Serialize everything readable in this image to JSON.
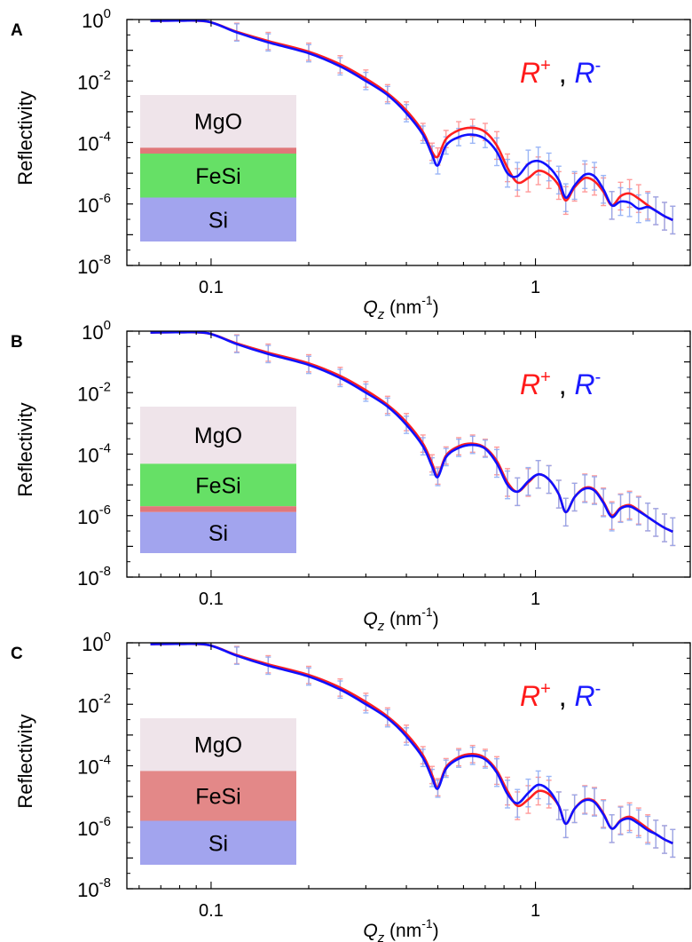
{
  "chart_data": [
    {
      "panel": "A",
      "type": "line",
      "xlabel_main": "Q",
      "xlabel_sub": "z",
      "xlabel_unit": "(nm",
      "xlabel_exp": "-1",
      "xlabel_close": ")",
      "ylabel": "Reflectivity",
      "xscale": "log",
      "yscale": "log",
      "xlim": [
        0.055,
        3.0
      ],
      "ylim": [
        1e-08,
        1
      ],
      "x_ticks": [
        {
          "value": 0.1,
          "label": "0.1"
        },
        {
          "value": 1,
          "label": "1"
        }
      ],
      "y_ticks": [
        {
          "value": 1,
          "base": "10",
          "exp": "0"
        },
        {
          "value": 0.01,
          "base": "10",
          "exp": "-2"
        },
        {
          "value": 0.0001,
          "base": "10",
          "exp": "-4"
        },
        {
          "value": 1e-06,
          "base": "10",
          "exp": "-6"
        },
        {
          "value": 1e-08,
          "base": "10",
          "exp": "-8"
        }
      ],
      "legend": {
        "plus_label": "R",
        "plus_sup": "+",
        "sep": ",",
        "minus_label": "R",
        "minus_sup": "-"
      },
      "layers": [
        {
          "label": "MgO",
          "color": "#efe4ea",
          "frac": 0.36
        },
        {
          "label": "",
          "color": "#e0777a",
          "frac": 0.04
        },
        {
          "label": "FeSi",
          "color": "#66e066",
          "frac": 0.3
        },
        {
          "label": "Si",
          "color": "#a2a4ee",
          "frac": 0.3
        }
      ],
      "series": [
        {
          "name": "R+",
          "color": "#ff2020",
          "errcolor": "#ff8a8a",
          "x": [
            0.065,
            0.08,
            0.098,
            0.12,
            0.15,
            0.2,
            0.25,
            0.3,
            0.35,
            0.4,
            0.45,
            0.48,
            0.5,
            0.53,
            0.58,
            0.64,
            0.7,
            0.76,
            0.82,
            0.88,
            0.95,
            1.02,
            1.1,
            1.18,
            1.24,
            1.32,
            1.42,
            1.52,
            1.62,
            1.72,
            1.83,
            1.95,
            2.08,
            2.22,
            2.35,
            2.5,
            2.65
          ],
          "y": [
            0.9,
            0.92,
            0.85,
            0.4,
            0.2,
            0.09,
            0.035,
            0.012,
            0.004,
            0.0011,
            0.00022,
            5e-05,
            3.5e-05,
            0.00013,
            0.00025,
            0.0003,
            0.00022,
            8e-05,
            1.5e-05,
            5e-06,
            7e-06,
            1.2e-05,
            9e-06,
            4e-06,
            1.3e-06,
            3.5e-06,
            7e-06,
            5.5e-06,
            2.5e-06,
            9e-07,
            1.8e-06,
            2.2e-06,
            1.5e-06,
            9e-07,
            6e-07,
            4e-07,
            3e-07
          ]
        },
        {
          "name": "R-",
          "color": "#1010ff",
          "errcolor": "#8aaaf5",
          "x": [
            0.065,
            0.08,
            0.098,
            0.12,
            0.15,
            0.2,
            0.25,
            0.3,
            0.35,
            0.4,
            0.45,
            0.48,
            0.5,
            0.53,
            0.58,
            0.64,
            0.7,
            0.76,
            0.82,
            0.88,
            0.95,
            1.02,
            1.1,
            1.18,
            1.24,
            1.32,
            1.42,
            1.52,
            1.62,
            1.72,
            1.83,
            1.95,
            2.08,
            2.22,
            2.35,
            2.5,
            2.65
          ],
          "y": [
            0.9,
            0.92,
            0.85,
            0.38,
            0.18,
            0.08,
            0.03,
            0.01,
            0.0035,
            0.0009,
            0.00018,
            4e-05,
            1.8e-05,
            8e-05,
            0.00015,
            0.00018,
            0.00013,
            5e-05,
            1e-05,
            8e-06,
            2e-05,
            2.5e-05,
            1.6e-05,
            6e-06,
            1.6e-06,
            4e-06,
            9e-06,
            8e-06,
            3e-06,
            9e-07,
            1.2e-06,
            1.1e-06,
            7e-07,
            8e-07,
            6e-07,
            4e-07,
            3e-07
          ]
        }
      ]
    },
    {
      "panel": "B",
      "type": "line",
      "xlabel_main": "Q",
      "xlabel_sub": "z",
      "xlabel_unit": "(nm",
      "xlabel_exp": "-1",
      "xlabel_close": ")",
      "ylabel": "Reflectivity",
      "xscale": "log",
      "yscale": "log",
      "xlim": [
        0.055,
        3.0
      ],
      "ylim": [
        1e-08,
        1
      ],
      "x_ticks": [
        {
          "value": 0.1,
          "label": "0.1"
        },
        {
          "value": 1,
          "label": "1"
        }
      ],
      "y_ticks": [
        {
          "value": 1,
          "base": "10",
          "exp": "0"
        },
        {
          "value": 0.01,
          "base": "10",
          "exp": "-2"
        },
        {
          "value": 0.0001,
          "base": "10",
          "exp": "-4"
        },
        {
          "value": 1e-06,
          "base": "10",
          "exp": "-6"
        },
        {
          "value": 1e-08,
          "base": "10",
          "exp": "-8"
        }
      ],
      "legend": {
        "plus_label": "R",
        "plus_sup": "+",
        "sep": ",",
        "minus_label": "R",
        "minus_sup": "-"
      },
      "layers": [
        {
          "label": "MgO",
          "color": "#efe4ea",
          "frac": 0.39
        },
        {
          "label": "FeSi",
          "color": "#66e066",
          "frac": 0.29
        },
        {
          "label": "",
          "color": "#e0777a",
          "frac": 0.04
        },
        {
          "label": "Si",
          "color": "#a2a4ee",
          "frac": 0.28
        }
      ],
      "series": [
        {
          "name": "R+",
          "color": "#ff2020",
          "errcolor": "#ff8a8a",
          "x": [
            0.065,
            0.08,
            0.098,
            0.12,
            0.15,
            0.2,
            0.25,
            0.3,
            0.35,
            0.4,
            0.45,
            0.48,
            0.5,
            0.53,
            0.58,
            0.64,
            0.7,
            0.76,
            0.82,
            0.88,
            0.95,
            1.02,
            1.1,
            1.18,
            1.24,
            1.32,
            1.42,
            1.52,
            1.62,
            1.72,
            1.83,
            1.95,
            2.08,
            2.22,
            2.35,
            2.5,
            2.65
          ],
          "y": [
            0.9,
            0.92,
            0.85,
            0.4,
            0.2,
            0.09,
            0.035,
            0.012,
            0.004,
            0.0011,
            0.00022,
            5e-05,
            2e-05,
            9e-05,
            0.00018,
            0.00022,
            0.00016,
            6e-05,
            1.2e-05,
            6e-06,
            1.2e-05,
            2.2e-05,
            1.5e-05,
            5e-06,
            1.3e-06,
            4e-06,
            8e-06,
            7e-06,
            2.8e-06,
            1e-06,
            1.8e-06,
            2.2e-06,
            1.5e-06,
            9e-07,
            6e-07,
            4e-07,
            3e-07
          ]
        },
        {
          "name": "R-",
          "color": "#1010ff",
          "errcolor": "#8aaaf5",
          "x": [
            0.065,
            0.08,
            0.098,
            0.12,
            0.15,
            0.2,
            0.25,
            0.3,
            0.35,
            0.4,
            0.45,
            0.48,
            0.5,
            0.53,
            0.58,
            0.64,
            0.7,
            0.76,
            0.82,
            0.88,
            0.95,
            1.02,
            1.1,
            1.18,
            1.24,
            1.32,
            1.42,
            1.52,
            1.62,
            1.72,
            1.83,
            1.95,
            2.08,
            2.22,
            2.35,
            2.5,
            2.65
          ],
          "y": [
            0.9,
            0.92,
            0.85,
            0.38,
            0.18,
            0.08,
            0.03,
            0.01,
            0.0035,
            0.0009,
            0.00018,
            4e-05,
            1.8e-05,
            8e-05,
            0.00016,
            0.0002,
            0.00015,
            5e-05,
            1e-05,
            6e-06,
            1.3e-05,
            2.2e-05,
            1.5e-05,
            5e-06,
            1.3e-06,
            4e-06,
            7.5e-06,
            6.5e-06,
            2.6e-06,
            9e-07,
            1.7e-06,
            2e-06,
            1.4e-06,
            9e-07,
            6e-07,
            4e-07,
            3e-07
          ]
        }
      ]
    },
    {
      "panel": "C",
      "type": "line",
      "xlabel_main": "Q",
      "xlabel_sub": "z",
      "xlabel_unit": "(nm",
      "xlabel_exp": "-1",
      "xlabel_close": ")",
      "ylabel": "Reflectivity",
      "xscale": "log",
      "yscale": "log",
      "xlim": [
        0.055,
        3.0
      ],
      "ylim": [
        1e-08,
        1
      ],
      "x_ticks": [
        {
          "value": 0.1,
          "label": "0.1"
        },
        {
          "value": 1,
          "label": "1"
        }
      ],
      "y_ticks": [
        {
          "value": 1,
          "base": "10",
          "exp": "0"
        },
        {
          "value": 0.01,
          "base": "10",
          "exp": "-2"
        },
        {
          "value": 0.0001,
          "base": "10",
          "exp": "-4"
        },
        {
          "value": 1e-06,
          "base": "10",
          "exp": "-6"
        },
        {
          "value": 1e-08,
          "base": "10",
          "exp": "-8"
        }
      ],
      "legend": {
        "plus_label": "R",
        "plus_sup": "+",
        "sep": ",",
        "minus_label": "R",
        "minus_sup": "-"
      },
      "layers": [
        {
          "label": "MgO",
          "color": "#efe4ea",
          "frac": 0.36
        },
        {
          "label": "FeSi",
          "color": "#e38888",
          "frac": 0.34
        },
        {
          "label": "Si",
          "color": "#a2a4ee",
          "frac": 0.3
        }
      ],
      "series": [
        {
          "name": "R+",
          "color": "#ff2020",
          "errcolor": "#ff8a8a",
          "x": [
            0.065,
            0.08,
            0.098,
            0.12,
            0.15,
            0.2,
            0.25,
            0.3,
            0.35,
            0.4,
            0.45,
            0.48,
            0.5,
            0.53,
            0.58,
            0.64,
            0.7,
            0.76,
            0.82,
            0.88,
            0.95,
            1.02,
            1.1,
            1.18,
            1.24,
            1.32,
            1.42,
            1.52,
            1.62,
            1.72,
            1.83,
            1.95,
            2.08,
            2.22,
            2.35,
            2.5,
            2.65
          ],
          "y": [
            0.9,
            0.92,
            0.85,
            0.4,
            0.2,
            0.09,
            0.035,
            0.012,
            0.004,
            0.0011,
            0.00022,
            5e-05,
            2e-05,
            9e-05,
            0.00019,
            0.00024,
            0.00018,
            7e-05,
            1.5e-05,
            5e-06,
            8e-06,
            1.5e-05,
            1.2e-05,
            5e-06,
            1.3e-06,
            4e-06,
            8e-06,
            7e-06,
            2.8e-06,
            9e-07,
            1.7e-06,
            2.2e-06,
            1.5e-06,
            9e-07,
            6e-07,
            4e-07,
            3e-07
          ]
        },
        {
          "name": "R-",
          "color": "#1010ff",
          "errcolor": "#8aaaf5",
          "x": [
            0.065,
            0.08,
            0.098,
            0.12,
            0.15,
            0.2,
            0.25,
            0.3,
            0.35,
            0.4,
            0.45,
            0.48,
            0.5,
            0.53,
            0.58,
            0.64,
            0.7,
            0.76,
            0.82,
            0.88,
            0.95,
            1.02,
            1.1,
            1.18,
            1.24,
            1.32,
            1.42,
            1.52,
            1.62,
            1.72,
            1.83,
            1.95,
            2.08,
            2.22,
            2.35,
            2.5,
            2.65
          ],
          "y": [
            0.9,
            0.92,
            0.85,
            0.38,
            0.18,
            0.08,
            0.03,
            0.01,
            0.0035,
            0.0009,
            0.00018,
            4e-05,
            1.8e-05,
            8e-05,
            0.00017,
            0.00021,
            0.00016,
            6e-05,
            1.2e-05,
            6e-06,
            1.3e-05,
            2.4e-05,
            1.6e-05,
            5e-06,
            1.3e-06,
            4e-06,
            7.5e-06,
            6.5e-06,
            2.6e-06,
            9e-07,
            1.6e-06,
            1.9e-06,
            1.3e-06,
            8e-07,
            6e-07,
            4e-07,
            3e-07
          ]
        }
      ]
    }
  ]
}
